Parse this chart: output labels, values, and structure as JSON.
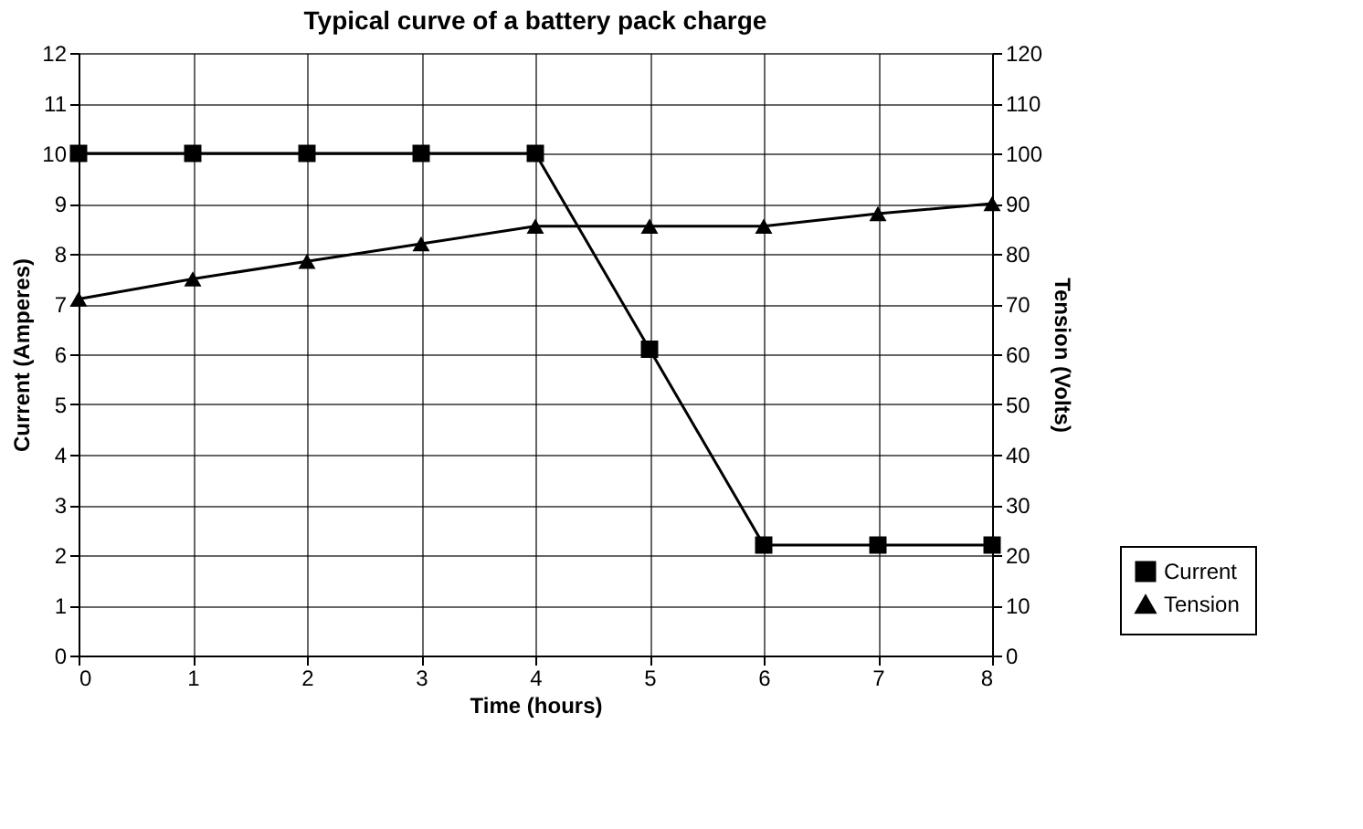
{
  "chart_data": {
    "type": "line",
    "title": "Typical curve of a battery pack charge",
    "xlabel": "Time (hours)",
    "ylabel": "Current (Amperes)",
    "y2label": "Tension (Volts)",
    "x": [
      0,
      1,
      2,
      3,
      4,
      5,
      6,
      7,
      8
    ],
    "series": [
      {
        "name": "Current",
        "color": "#000000",
        "marker": "square",
        "values": [
          10,
          10,
          10,
          10,
          10,
          6.1,
          2.2,
          2.2,
          2.2
        ]
      },
      {
        "name": "Tension",
        "color": "#000000",
        "marker": "triangle",
        "axis": "y2",
        "values": [
          71,
          75,
          78.5,
          82,
          85.5,
          85.5,
          85.5,
          88,
          90
        ]
      }
    ],
    "xlim": [
      0,
      8
    ],
    "xticks": [
      0,
      1,
      2,
      3,
      4,
      5,
      6,
      7,
      8
    ],
    "ylim": [
      0,
      12
    ],
    "yticks": [
      0,
      1,
      2,
      3,
      4,
      5,
      6,
      7,
      8,
      9,
      10,
      11,
      12
    ],
    "y2lim": [
      0,
      120
    ],
    "y2ticks": [
      0,
      10,
      20,
      30,
      40,
      50,
      60,
      70,
      80,
      90,
      100,
      110,
      120
    ],
    "grid": true,
    "legend": "bottom right",
    "line_style": "solid"
  }
}
